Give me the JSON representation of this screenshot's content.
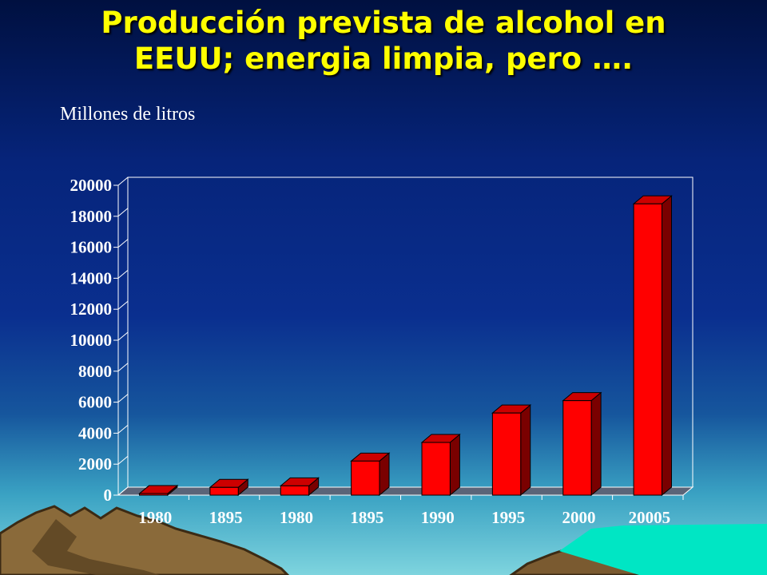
{
  "slide": {
    "title_line1": "Producción prevista de alcohol en",
    "title_line2": "EEUU; energia limpia, pero ….",
    "unit_label": "Millones de litros"
  },
  "colors": {
    "title": "#ffff00",
    "bar_front": "#ff0000",
    "bar_top": "#cc0000",
    "bar_side": "#7a0000",
    "axis": "#ffffff",
    "gridline": "#ffffff"
  },
  "chart_data": {
    "type": "bar",
    "style": "3d-columns",
    "categories": [
      "1980",
      "1895",
      "1980",
      "1895",
      "1990",
      "1995",
      "2000",
      "20005"
    ],
    "values": [
      100,
      500,
      600,
      2200,
      3400,
      5300,
      6100,
      18800
    ],
    "ylim": [
      0,
      20000
    ],
    "yticks": [
      "0",
      "2000",
      "4000",
      "6000",
      "8000",
      "10000",
      "12000",
      "14000",
      "16000",
      "18000",
      "20000"
    ],
    "title": "",
    "xlabel": "",
    "ylabel": "",
    "grid": false,
    "legend": "none"
  }
}
